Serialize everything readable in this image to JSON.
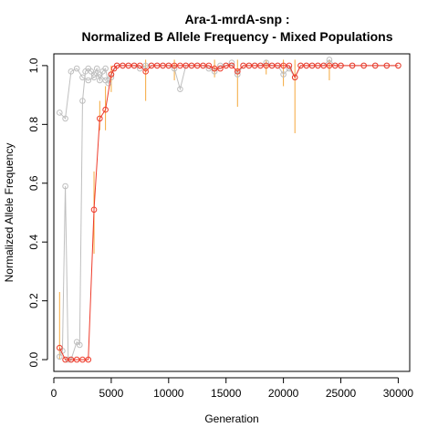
{
  "chart_data": {
    "type": "line",
    "title_line1": "Ara-1-mrdA-snp :",
    "title_line2": "Normalized B Allele Frequency - Mixed Populations",
    "xlabel": "Generation",
    "ylabel": "Normalized Allele Frequency",
    "xlim": [
      0,
      31000
    ],
    "ylim": [
      -0.04,
      1.04
    ],
    "x_ticks": [
      0,
      5000,
      10000,
      15000,
      20000,
      25000,
      30000
    ],
    "y_ticks": [
      0.0,
      0.2,
      0.4,
      0.6,
      0.8,
      1.0
    ],
    "series": [
      {
        "color": "#bfbfbf",
        "x": [
          500,
          1000,
          1500,
          2000,
          2500,
          3000,
          3500,
          4000,
          4500,
          5000,
          5500,
          6000,
          6500,
          7000,
          7500,
          8000,
          8500,
          9000,
          9500,
          10000,
          10500,
          11000,
          11500,
          12000,
          12500,
          13000,
          13500,
          14000,
          14500,
          15000,
          15500,
          16000,
          16500,
          17000,
          17500,
          18000,
          18500,
          19000,
          19500,
          20000,
          20500,
          21000,
          21500,
          22000,
          22500,
          23000,
          23500,
          24000,
          24500,
          25000,
          26000,
          27000,
          28000,
          29000,
          30000
        ],
        "y": [
          0.84,
          0.82,
          0.98,
          0.99,
          0.96,
          0.95,
          0.96,
          0.97,
          0.95,
          0.97,
          1.0,
          1.0,
          1.0,
          1.0,
          0.99,
          1.0,
          1.0,
          1.0,
          1.0,
          1.0,
          0.99,
          0.92,
          1.0,
          1.0,
          1.0,
          1.0,
          0.99,
          0.98,
          1.0,
          1.0,
          1.01,
          0.97,
          1.0,
          1.0,
          1.0,
          1.0,
          1.01,
          1.0,
          1.0,
          0.97,
          0.99,
          0.96,
          1.0,
          1.0,
          1.0,
          1.0,
          1.0,
          1.02,
          1.0,
          1.0,
          1.0,
          1.0,
          1.0,
          1.0,
          1.0
        ]
      },
      {
        "color": "#bfbfbf",
        "x": [
          500,
          750,
          1000,
          1250,
          1500,
          2000,
          2250,
          2500,
          2750,
          3000,
          3250,
          3500,
          3750,
          4000,
          4250,
          4500,
          4750,
          5000
        ],
        "y": [
          0.01,
          0.03,
          0.59,
          0.0,
          0.0,
          0.06,
          0.05,
          0.88,
          0.98,
          0.99,
          0.98,
          0.97,
          0.99,
          0.95,
          0.98,
          0.99,
          0.94,
          0.96
        ]
      },
      {
        "color": "#ee3b2b",
        "x": [
          500,
          1000,
          1500,
          2000,
          2500,
          3000,
          3500,
          4000,
          4500,
          5000,
          5250,
          5500,
          6000,
          6500,
          7000,
          7500,
          8000,
          8500,
          9000,
          9500,
          10000,
          10500,
          11000,
          11500,
          12000,
          12500,
          13000,
          13500,
          14000,
          14500,
          15000,
          15500,
          16000,
          16500,
          17000,
          17500,
          18000,
          18500,
          19000,
          19500,
          20000,
          20500,
          21000,
          21500,
          22000,
          22500,
          23000,
          23500,
          24000,
          24500,
          25000,
          26000,
          27000,
          28000,
          29000,
          30000
        ],
        "y": [
          0.04,
          0.0,
          0.0,
          0.0,
          0.0,
          0.0,
          0.51,
          0.82,
          0.85,
          0.97,
          0.99,
          1.0,
          1.0,
          1.0,
          1.0,
          1.0,
          0.98,
          1.0,
          1.0,
          1.0,
          1.0,
          1.0,
          1.0,
          1.0,
          1.0,
          1.0,
          1.0,
          1.0,
          0.99,
          0.99,
          1.0,
          1.0,
          0.98,
          1.0,
          1.0,
          1.0,
          1.0,
          1.0,
          1.0,
          1.0,
          1.0,
          1.0,
          0.96,
          1.0,
          1.0,
          1.0,
          1.0,
          1.0,
          1.0,
          1.0,
          1.0,
          1.0,
          1.0,
          1.0,
          1.0,
          1.0
        ]
      }
    ],
    "error_bars": {
      "color": "#f4a83c",
      "items": [
        {
          "x": 500,
          "lo": 0.0,
          "hi": 0.23
        },
        {
          "x": 3500,
          "lo": 0.36,
          "hi": 0.64
        },
        {
          "x": 4000,
          "lo": 0.78,
          "hi": 0.88
        },
        {
          "x": 4500,
          "lo": 0.78,
          "hi": 0.93
        },
        {
          "x": 5000,
          "lo": 0.91,
          "hi": 1.0
        },
        {
          "x": 8000,
          "lo": 0.88,
          "hi": 1.02
        },
        {
          "x": 10500,
          "lo": 0.95,
          "hi": 1.02
        },
        {
          "x": 14000,
          "lo": 0.96,
          "hi": 1.02
        },
        {
          "x": 16000,
          "lo": 0.86,
          "hi": 1.02
        },
        {
          "x": 18500,
          "lo": 0.97,
          "hi": 1.02
        },
        {
          "x": 20000,
          "lo": 0.93,
          "hi": 1.02
        },
        {
          "x": 21000,
          "lo": 0.77,
          "hi": 1.02
        },
        {
          "x": 24000,
          "lo": 0.95,
          "hi": 1.02
        }
      ]
    }
  }
}
